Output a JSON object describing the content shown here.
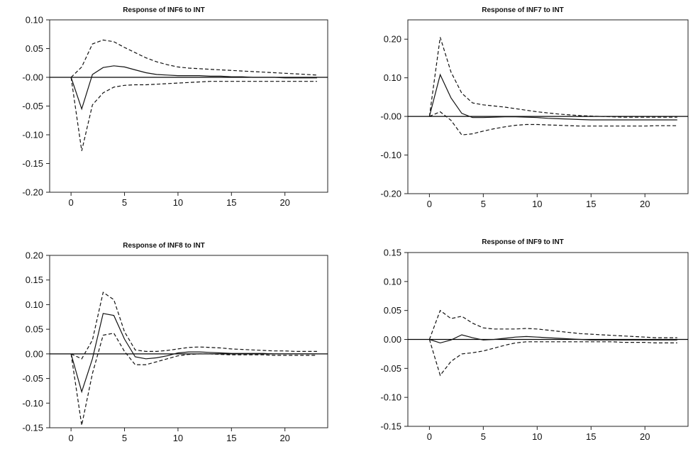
{
  "chart_data": [
    {
      "type": "line",
      "title": "Response of INF6 to INT",
      "xlabel": "",
      "ylabel": "",
      "xlim": [
        -2,
        24
      ],
      "ylim": [
        -0.2,
        0.1
      ],
      "x_ticks": [
        0,
        5,
        10,
        15,
        20
      ],
      "x_tick_labels": [
        "0",
        "5",
        "10",
        "15",
        "20"
      ],
      "y_ticks": [
        0.1,
        0.05,
        0.0,
        -0.05,
        -0.1,
        -0.15,
        -0.2
      ],
      "y_tick_labels": [
        "0.10",
        "0.05",
        "-0.00",
        "-0.05",
        "-0.10",
        "-0.15",
        "-0.20"
      ],
      "grid": false,
      "zero_line": true,
      "x": [
        0,
        1,
        2,
        3,
        4,
        5,
        6,
        7,
        8,
        9,
        10,
        11,
        12,
        13,
        14,
        15,
        16,
        17,
        18,
        19,
        20,
        21,
        22,
        23
      ],
      "series": [
        {
          "style": "solid",
          "values": [
            0,
            -0.055,
            0.005,
            0.017,
            0.02,
            0.018,
            0.013,
            0.008,
            0.005,
            0.004,
            0.003,
            0.003,
            0.003,
            0.002,
            0.002,
            0.001,
            0.001,
            0.0,
            0.0,
            0.0,
            -0.001,
            -0.001,
            -0.001,
            -0.001
          ]
        },
        {
          "style": "dashed",
          "values": [
            0,
            0.018,
            0.058,
            0.065,
            0.062,
            0.052,
            0.043,
            0.034,
            0.027,
            0.022,
            0.018,
            0.016,
            0.015,
            0.014,
            0.013,
            0.012,
            0.011,
            0.01,
            0.009,
            0.008,
            0.007,
            0.006,
            0.005,
            0.004
          ]
        },
        {
          "style": "dashed",
          "values": [
            0,
            -0.128,
            -0.048,
            -0.027,
            -0.017,
            -0.014,
            -0.013,
            -0.013,
            -0.012,
            -0.011,
            -0.01,
            -0.009,
            -0.008,
            -0.007,
            -0.007,
            -0.007,
            -0.007,
            -0.007,
            -0.007,
            -0.007,
            -0.007,
            -0.007,
            -0.007,
            -0.007
          ]
        }
      ]
    },
    {
      "type": "line",
      "title": "Response of INF7 to INT",
      "xlabel": "",
      "ylabel": "",
      "xlim": [
        -2,
        24
      ],
      "ylim": [
        -0.2,
        0.25
      ],
      "x_ticks": [
        0,
        5,
        10,
        15,
        20
      ],
      "x_tick_labels": [
        "0",
        "5",
        "10",
        "15",
        "20"
      ],
      "y_ticks": [
        0.2,
        0.1,
        0.0,
        -0.1,
        -0.2
      ],
      "y_tick_labels": [
        "0.20",
        "0.10",
        "-0.00",
        "-0.10",
        "-0.20"
      ],
      "grid": false,
      "zero_line": true,
      "x": [
        0,
        1,
        2,
        3,
        4,
        5,
        6,
        7,
        8,
        9,
        10,
        11,
        12,
        13,
        14,
        15,
        16,
        17,
        18,
        19,
        20,
        21,
        22,
        23
      ],
      "series": [
        {
          "style": "solid",
          "values": [
            0,
            0.108,
            0.048,
            0.008,
            -0.003,
            -0.003,
            -0.002,
            -0.001,
            -0.001,
            -0.002,
            -0.003,
            -0.005,
            -0.006,
            -0.007,
            -0.008,
            -0.009,
            -0.009,
            -0.009,
            -0.009,
            -0.009,
            -0.009,
            -0.009,
            -0.009,
            -0.009
          ]
        },
        {
          "style": "dashed",
          "values": [
            0,
            0.205,
            0.115,
            0.06,
            0.035,
            0.03,
            0.027,
            0.024,
            0.02,
            0.016,
            0.012,
            0.009,
            0.006,
            0.004,
            0.002,
            0.001,
            0.0,
            -0.001,
            -0.002,
            -0.002,
            -0.002,
            -0.002,
            -0.002,
            -0.002
          ]
        },
        {
          "style": "dashed",
          "values": [
            0,
            0.012,
            -0.01,
            -0.048,
            -0.045,
            -0.038,
            -0.032,
            -0.027,
            -0.023,
            -0.021,
            -0.021,
            -0.022,
            -0.023,
            -0.024,
            -0.025,
            -0.025,
            -0.025,
            -0.025,
            -0.025,
            -0.025,
            -0.025,
            -0.024,
            -0.024,
            -0.024
          ]
        }
      ]
    },
    {
      "type": "line",
      "title": "Response of INF8 to INT",
      "xlabel": "",
      "ylabel": "",
      "xlim": [
        -2,
        24
      ],
      "ylim": [
        -0.15,
        0.2
      ],
      "x_ticks": [
        0,
        5,
        10,
        15,
        20
      ],
      "x_tick_labels": [
        "0",
        "5",
        "10",
        "15",
        "20"
      ],
      "y_ticks": [
        0.2,
        0.15,
        0.1,
        0.05,
        0.0,
        -0.05,
        -0.1,
        -0.15
      ],
      "y_tick_labels": [
        "0.20",
        "0.15",
        "0.10",
        "0.05",
        "0.00",
        "-0.05",
        "-0.10",
        "-0.15"
      ],
      "grid": false,
      "zero_line": true,
      "x": [
        0,
        1,
        2,
        3,
        4,
        5,
        6,
        7,
        8,
        9,
        10,
        11,
        12,
        13,
        14,
        15,
        16,
        17,
        18,
        19,
        20,
        21,
        22,
        23
      ],
      "series": [
        {
          "style": "solid",
          "values": [
            0,
            -0.077,
            -0.01,
            0.082,
            0.078,
            0.03,
            -0.006,
            -0.01,
            -0.008,
            -0.004,
            0.002,
            0.004,
            0.004,
            0.003,
            0.002,
            0.001,
            0.001,
            0.001,
            0.001,
            0.0,
            0.0,
            0.0,
            0.0,
            0.0
          ]
        },
        {
          "style": "dashed",
          "values": [
            0,
            -0.01,
            0.028,
            0.125,
            0.11,
            0.045,
            0.008,
            0.005,
            0.005,
            0.007,
            0.01,
            0.013,
            0.014,
            0.013,
            0.012,
            0.01,
            0.009,
            0.008,
            0.007,
            0.006,
            0.006,
            0.005,
            0.005,
            0.005
          ]
        },
        {
          "style": "dashed",
          "values": [
            0,
            -0.145,
            -0.04,
            0.038,
            0.042,
            0.005,
            -0.022,
            -0.022,
            -0.016,
            -0.01,
            -0.004,
            -0.001,
            0.0,
            0.0,
            -0.001,
            -0.002,
            -0.002,
            -0.002,
            -0.002,
            -0.003,
            -0.003,
            -0.003,
            -0.003,
            -0.003
          ]
        }
      ]
    },
    {
      "type": "line",
      "title": "Response of INF9 to INT",
      "xlabel": "",
      "ylabel": "",
      "xlim": [
        -2,
        24
      ],
      "ylim": [
        -0.15,
        0.15
      ],
      "x_ticks": [
        0,
        5,
        10,
        15,
        20
      ],
      "x_tick_labels": [
        "0",
        "5",
        "10",
        "15",
        "20"
      ],
      "y_ticks": [
        0.15,
        0.1,
        0.05,
        0.0,
        -0.05,
        -0.1,
        -0.15
      ],
      "y_tick_labels": [
        "0.15",
        "0.10",
        "0.05",
        "0.00",
        "-0.05",
        "-0.10",
        "-0.15"
      ],
      "grid": false,
      "zero_line": true,
      "x": [
        0,
        1,
        2,
        3,
        4,
        5,
        6,
        7,
        8,
        9,
        10,
        11,
        12,
        13,
        14,
        15,
        16,
        17,
        18,
        19,
        20,
        21,
        22,
        23
      ],
      "series": [
        {
          "style": "solid",
          "values": [
            0,
            -0.006,
            -0.001,
            0.008,
            0.003,
            -0.001,
            0.0,
            0.002,
            0.004,
            0.005,
            0.004,
            0.003,
            0.002,
            0.001,
            0.0,
            -0.001,
            -0.001,
            -0.001,
            -0.001,
            -0.001,
            -0.001,
            -0.001,
            -0.001,
            -0.001
          ]
        },
        {
          "style": "dashed",
          "values": [
            0,
            0.05,
            0.036,
            0.04,
            0.028,
            0.02,
            0.018,
            0.018,
            0.018,
            0.019,
            0.018,
            0.016,
            0.014,
            0.012,
            0.01,
            0.009,
            0.008,
            0.007,
            0.006,
            0.005,
            0.004,
            0.003,
            0.003,
            0.003
          ]
        },
        {
          "style": "dashed",
          "values": [
            0,
            -0.062,
            -0.038,
            -0.025,
            -0.023,
            -0.02,
            -0.015,
            -0.01,
            -0.006,
            -0.004,
            -0.004,
            -0.004,
            -0.004,
            -0.004,
            -0.004,
            -0.004,
            -0.004,
            -0.004,
            -0.005,
            -0.005,
            -0.005,
            -0.006,
            -0.006,
            -0.006
          ]
        }
      ]
    }
  ]
}
